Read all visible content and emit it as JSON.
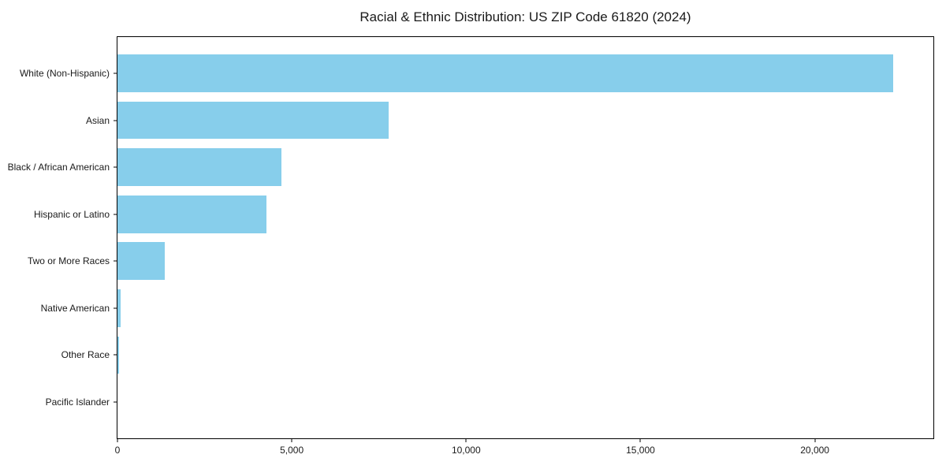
{
  "chart_data": {
    "type": "bar",
    "orientation": "horizontal",
    "title": "Racial & Ethnic Distribution: US ZIP Code 61820 (2024)",
    "categories": [
      "White (Non-Hispanic)",
      "Asian",
      "Black / African American",
      "Hispanic or Latino",
      "Two or More Races",
      "Native American",
      "Other Race",
      "Pacific Islander"
    ],
    "values": [
      22250,
      7780,
      4700,
      4270,
      1350,
      80,
      45,
      0
    ],
    "xlabel": "",
    "ylabel": "",
    "xlim": [
      0,
      23400
    ],
    "x_ticks": [
      0,
      5000,
      10000,
      15000,
      20000
    ],
    "x_tick_labels": [
      "0",
      "5,000",
      "10,000",
      "15,000",
      "20,000"
    ],
    "bar_color": "#87CEEB",
    "axis_color": "#000000",
    "text_color": "#1a1a1a",
    "background_color": "#FFFFFF",
    "grid": false,
    "legend": null
  }
}
